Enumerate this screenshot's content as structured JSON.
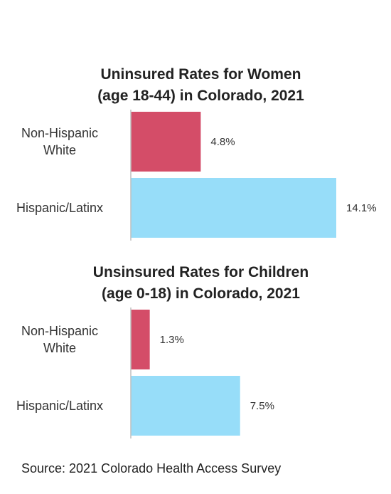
{
  "chart_data": [
    {
      "type": "bar",
      "orientation": "horizontal",
      "title": "Uninsured Rates for Women (age 18-44) in Colorado, 2021",
      "title_lines": [
        "Uninsured Rates for Women",
        "(age 18-44) in Colorado, 2021"
      ],
      "categories": [
        [
          "Non-Hispanic",
          "White"
        ],
        [
          "Hispanic/Latinx"
        ]
      ],
      "values": [
        4.8,
        14.1
      ],
      "value_labels": [
        "4.8%",
        "14.1%"
      ],
      "colors": [
        "#D44D68",
        "#97DDF9"
      ],
      "xlim": [
        0,
        14.1
      ],
      "grid": false,
      "legend": "none"
    },
    {
      "type": "bar",
      "orientation": "horizontal",
      "title": "Unsinsured Rates for Children (age 0-18) in Colorado, 2021",
      "title_lines": [
        "Unsinsured Rates for Children",
        "(age 0-18) in Colorado, 2021"
      ],
      "categories": [
        [
          "Non-Hispanic",
          "White"
        ],
        [
          "Hispanic/Latinx"
        ]
      ],
      "values": [
        1.3,
        7.5
      ],
      "value_labels": [
        "1.3%",
        "7.5%"
      ],
      "colors": [
        "#D44D68",
        "#97DDF9"
      ],
      "xlim": [
        0,
        14.1
      ],
      "grid": false,
      "legend": "none"
    }
  ],
  "source": "Source: 2021 Colorado Health Access Survey"
}
